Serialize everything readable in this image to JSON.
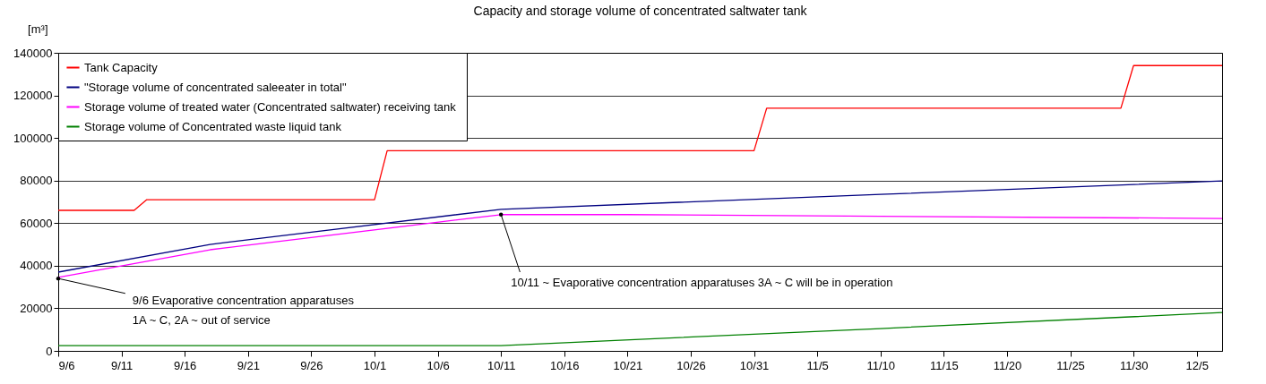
{
  "chart_data": {
    "type": "line",
    "title": "Capacity and storage volume of concentrated saltwater tank",
    "ylabel": "[m³]",
    "xlim": [
      "--09-06",
      "--12-07"
    ],
    "ylim": [
      0,
      140000
    ],
    "yticks": [
      0,
      20000,
      40000,
      60000,
      80000,
      100000,
      120000,
      140000
    ],
    "xticks": [
      {
        "value": "--09-06",
        "label": "9/6"
      },
      {
        "value": "--09-11",
        "label": "9/11"
      },
      {
        "value": "--09-16",
        "label": "9/16"
      },
      {
        "value": "--09-21",
        "label": "9/21"
      },
      {
        "value": "--09-26",
        "label": "9/26"
      },
      {
        "value": "--10-01",
        "label": "10/1"
      },
      {
        "value": "--10-06",
        "label": "10/6"
      },
      {
        "value": "--10-11",
        "label": "10/11"
      },
      {
        "value": "--10-16",
        "label": "10/16"
      },
      {
        "value": "--10-21",
        "label": "10/21"
      },
      {
        "value": "--10-26",
        "label": "10/26"
      },
      {
        "value": "--10-31",
        "label": "10/31"
      },
      {
        "value": "--11-05",
        "label": "11/5"
      },
      {
        "value": "--11-10",
        "label": "11/10"
      },
      {
        "value": "--11-15",
        "label": "11/15"
      },
      {
        "value": "--11-20",
        "label": "11/20"
      },
      {
        "value": "--11-25",
        "label": "11/25"
      },
      {
        "value": "--11-30",
        "label": "11/30"
      },
      {
        "value": "--12-05",
        "label": "12/5"
      }
    ],
    "grid": "y",
    "legend": "top left",
    "marker": "none",
    "line_style": "solid",
    "series": [
      {
        "name": "Tank Capacity",
        "color": "#ff0000",
        "x": [
          "--09-06",
          "--09-12",
          "--09-13",
          "--10-01",
          "--10-02",
          "--10-31",
          "--11-01",
          "--11-29",
          "--11-30",
          "--12-07"
        ],
        "values": [
          66000,
          66000,
          71000,
          71000,
          94000,
          94000,
          114000,
          114000,
          134000,
          134000
        ]
      },
      {
        "name": "\"Storage volume of concentrated saleeater in total\"",
        "color": "#000080",
        "x": [
          "--09-06",
          "--09-18",
          "--10-11",
          "--11-10",
          "--12-07"
        ],
        "values": [
          37000,
          50000,
          66500,
          73500,
          79800
        ]
      },
      {
        "name": "Storage volume of treated water (Concentrated saltwater)  receiving tank",
        "color": "#ff00ff",
        "x": [
          "--09-06",
          "--09-18",
          "--10-11",
          "--10-21",
          "--11-10",
          "--12-07"
        ],
        "values": [
          34500,
          47500,
          64000,
          64000,
          63200,
          62200
        ]
      },
      {
        "name": "Storage volume of Concentrated waste liquid tank",
        "color": "#008000",
        "x": [
          "--09-06",
          "--10-11",
          "--11-10",
          "--12-07"
        ],
        "values": [
          2500,
          2500,
          10500,
          18000
        ]
      }
    ],
    "annotations": [
      {
        "text": "9/6  Evaporative concentration apparatuses\n1A ~ C, 2A ~  out of service",
        "x": "--09-06",
        "y": 34000
      },
      {
        "text": "10/11 ~   Evaporative concentration apparatuses 3A  ~ C will be in operation",
        "x": "--10-11",
        "y": 64000
      }
    ]
  }
}
